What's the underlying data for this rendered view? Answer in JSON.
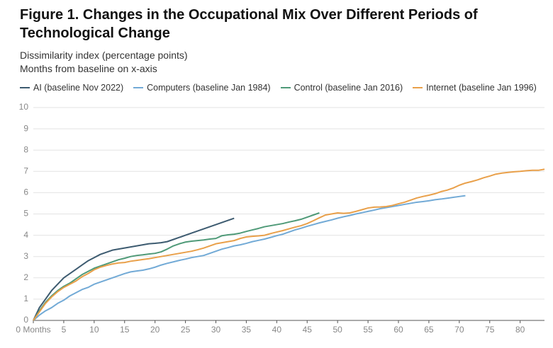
{
  "chart_data": {
    "type": "line",
    "title": "Figure 1. Changes in the Occupational Mix Over Different Periods of Technological Change",
    "subtitle": [
      "Dissimilarity index (percentage points)",
      "Months from baseline on x-axis"
    ],
    "x": [
      0,
      1,
      2,
      3,
      4,
      5,
      6,
      7,
      8,
      9,
      10,
      11,
      12,
      13,
      14,
      15,
      16,
      17,
      18,
      19,
      20,
      21,
      22,
      23,
      24,
      25,
      26,
      27,
      28,
      29,
      30,
      31,
      32,
      33,
      34,
      35,
      36,
      37,
      38,
      39,
      40,
      41,
      42,
      43,
      44,
      45,
      46,
      47,
      48,
      49,
      50,
      51,
      52,
      53,
      54,
      55,
      56,
      57,
      58,
      59,
      60,
      61,
      62,
      63,
      64,
      65,
      66,
      67,
      68,
      69,
      70,
      71,
      72,
      73,
      74,
      75,
      76,
      77,
      78,
      79,
      80,
      81,
      82,
      83,
      84
    ],
    "xlim": [
      0,
      84
    ],
    "xticks": [
      {
        "value": 0,
        "label": "0 Months"
      },
      5,
      10,
      15,
      20,
      25,
      30,
      35,
      40,
      45,
      50,
      55,
      60,
      65,
      70,
      75,
      80
    ],
    "ylim": [
      0,
      10
    ],
    "yticks": [
      0,
      1,
      2,
      3,
      4,
      5,
      6,
      7,
      8,
      9,
      10
    ],
    "grid": true,
    "series": [
      {
        "name": "AI (baseline Nov 2022)",
        "color": "#3d5b70",
        "values": [
          0,
          0.6,
          1.0,
          1.4,
          1.7,
          2.0,
          2.2,
          2.4,
          2.6,
          2.8,
          2.95,
          3.1,
          3.2,
          3.3,
          3.35,
          3.4,
          3.45,
          3.5,
          3.55,
          3.6,
          3.62,
          3.65,
          3.7,
          3.8,
          3.9,
          4.0,
          4.1,
          4.2,
          4.3,
          4.4,
          4.5,
          4.6,
          4.7,
          4.8,
          null,
          null,
          null,
          null,
          null,
          null,
          null,
          null,
          null,
          null,
          null,
          null,
          null,
          null,
          null,
          null,
          null,
          null,
          null,
          null,
          null,
          null,
          null,
          null,
          null,
          null,
          null,
          null,
          null,
          null,
          null,
          null,
          null,
          null,
          null,
          null,
          null,
          null,
          null,
          null,
          null,
          null,
          null,
          null,
          null,
          null,
          null,
          null,
          null,
          null,
          null
        ]
      },
      {
        "name": "Computers (baseline Jan 1984)",
        "color": "#72aad6",
        "values": [
          0,
          0.25,
          0.45,
          0.6,
          0.8,
          0.95,
          1.15,
          1.3,
          1.45,
          1.55,
          1.7,
          1.8,
          1.9,
          2.0,
          2.1,
          2.2,
          2.28,
          2.32,
          2.36,
          2.42,
          2.5,
          2.6,
          2.68,
          2.75,
          2.82,
          2.88,
          2.95,
          3.0,
          3.05,
          3.15,
          3.25,
          3.35,
          3.42,
          3.5,
          3.55,
          3.62,
          3.7,
          3.76,
          3.82,
          3.9,
          3.98,
          4.05,
          4.15,
          4.25,
          4.33,
          4.42,
          4.5,
          4.58,
          4.65,
          4.72,
          4.8,
          4.87,
          4.93,
          5.0,
          5.06,
          5.12,
          5.18,
          5.25,
          5.3,
          5.35,
          5.4,
          5.45,
          5.5,
          5.55,
          5.58,
          5.62,
          5.67,
          5.7,
          5.74,
          5.78,
          5.82,
          5.86,
          null,
          null,
          null,
          null,
          null,
          null,
          null,
          null,
          null,
          null,
          null,
          null,
          null
        ]
      },
      {
        "name": "Control (baseline Jan 2016)",
        "color": "#4f9a78",
        "values": [
          0,
          0.45,
          0.85,
          1.15,
          1.4,
          1.6,
          1.75,
          1.95,
          2.15,
          2.3,
          2.45,
          2.55,
          2.65,
          2.75,
          2.85,
          2.92,
          3.0,
          3.05,
          3.08,
          3.12,
          3.15,
          3.22,
          3.35,
          3.5,
          3.6,
          3.68,
          3.72,
          3.75,
          3.78,
          3.82,
          3.85,
          3.98,
          4.02,
          4.05,
          4.1,
          4.18,
          4.25,
          4.32,
          4.4,
          4.45,
          4.5,
          4.55,
          4.62,
          4.68,
          4.75,
          4.85,
          4.95,
          5.05,
          null,
          null,
          null,
          null,
          null,
          null,
          null,
          null,
          null,
          null,
          null,
          null,
          null,
          null,
          null,
          null,
          null,
          null,
          null,
          null,
          null,
          null,
          null,
          null,
          null,
          null,
          null,
          null,
          null,
          null,
          null,
          null,
          null,
          null,
          null,
          null,
          null
        ]
      },
      {
        "name": "Internet (baseline Jan 1996)",
        "color": "#e9a04a",
        "values": [
          0,
          0.4,
          0.8,
          1.1,
          1.35,
          1.55,
          1.7,
          1.85,
          2.05,
          2.2,
          2.38,
          2.5,
          2.58,
          2.65,
          2.7,
          2.72,
          2.78,
          2.82,
          2.86,
          2.9,
          2.95,
          3.0,
          3.05,
          3.1,
          3.15,
          3.2,
          3.25,
          3.32,
          3.4,
          3.5,
          3.6,
          3.65,
          3.7,
          3.75,
          3.85,
          3.92,
          3.95,
          3.97,
          4.0,
          4.08,
          4.15,
          4.22,
          4.3,
          4.38,
          4.45,
          4.55,
          4.68,
          4.82,
          4.95,
          5.0,
          5.05,
          5.03,
          5.05,
          5.12,
          5.2,
          5.28,
          5.32,
          5.33,
          5.35,
          5.4,
          5.48,
          5.55,
          5.65,
          5.75,
          5.82,
          5.88,
          5.95,
          6.05,
          6.12,
          6.22,
          6.35,
          6.45,
          6.52,
          6.6,
          6.7,
          6.78,
          6.87,
          6.92,
          6.95,
          6.98,
          7.0,
          7.03,
          7.05,
          7.05,
          7.1
        ]
      }
    ]
  }
}
